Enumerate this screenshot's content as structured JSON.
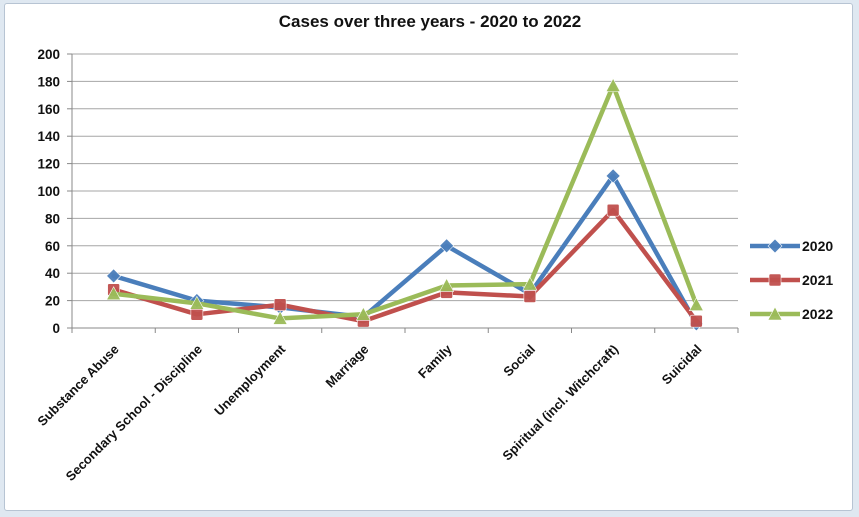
{
  "chart_data": {
    "type": "line",
    "title": "Cases over three years - 2020 to 2022",
    "xlabel": "",
    "ylabel": "",
    "ylim": [
      0,
      200
    ],
    "yticks": [
      "0",
      "20",
      "40",
      "60",
      "80",
      "100",
      "120",
      "140",
      "160",
      "180",
      "200"
    ],
    "grid": true,
    "legend_position": "right",
    "categories": [
      "Substance Abuse",
      "Secondary School - Discipline",
      "Unemployment",
      "Marriage",
      "Family",
      "Social",
      "Spiritual (incl. Witchcraft)",
      "Suicidal"
    ],
    "series": [
      {
        "name": "2020",
        "color": "#4a7ebb",
        "marker": "diamond",
        "values": [
          38,
          20,
          15,
          8,
          60,
          25,
          111,
          3
        ]
      },
      {
        "name": "2021",
        "color": "#c0504d",
        "marker": "square",
        "values": [
          28,
          10,
          17,
          5,
          26,
          23,
          86,
          5
        ]
      },
      {
        "name": "2022",
        "color": "#9bbb59",
        "marker": "triangle",
        "values": [
          25,
          18,
          7,
          10,
          31,
          32,
          177,
          17
        ]
      }
    ]
  }
}
